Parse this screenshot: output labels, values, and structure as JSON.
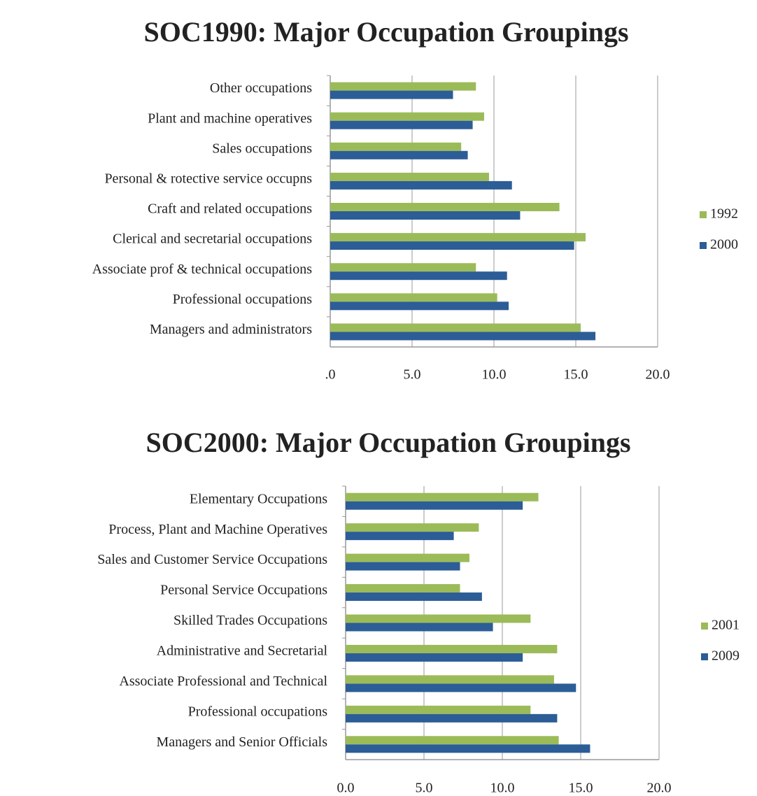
{
  "chart_data": [
    {
      "type": "bar",
      "orientation": "horizontal",
      "title": "SOC1990: Major Occupation Groupings",
      "categories": [
        "Other occupations",
        "Plant and machine operatives",
        "Sales occupations",
        "Personal & rotective service occupns",
        "Craft and related occupations",
        "Clerical and secretarial occupations",
        "Associate prof & technical occupations",
        "Professional occupations",
        "Managers and administrators"
      ],
      "series": [
        {
          "name": "1992",
          "color": "#9bbb59",
          "values": [
            8.9,
            9.4,
            8.0,
            9.7,
            14.0,
            15.6,
            8.9,
            10.2,
            15.3
          ]
        },
        {
          "name": "2000",
          "color": "#2c5d96",
          "values": [
            7.5,
            8.7,
            8.4,
            11.1,
            11.6,
            14.9,
            10.8,
            10.9,
            16.2
          ]
        }
      ],
      "xlim": [
        0,
        20
      ],
      "xticks": [
        {
          "value": 0,
          "label": ".0"
        },
        {
          "value": 5,
          "label": "5.0"
        },
        {
          "value": 10,
          "label": "10.0"
        },
        {
          "value": 15,
          "label": "15.0"
        },
        {
          "value": 20,
          "label": "20.0"
        }
      ],
      "grid": true,
      "legend": "right"
    },
    {
      "type": "bar",
      "orientation": "horizontal",
      "title": "SOC2000: Major Occupation Groupings",
      "categories": [
        "Elementary Occupations",
        "Process, Plant and Machine Operatives",
        "Sales and Customer Service Occupations",
        "Personal Service Occupations",
        "Skilled Trades Occupations",
        "Administrative and Secretarial",
        "Associate Professional and Technical",
        "Professional occupations",
        "Managers and Senior Officials"
      ],
      "series": [
        {
          "name": "2001",
          "color": "#9bbb59",
          "values": [
            12.3,
            8.5,
            7.9,
            7.3,
            11.8,
            13.5,
            13.3,
            11.8,
            13.6
          ]
        },
        {
          "name": "2009",
          "color": "#2c5d96",
          "values": [
            11.3,
            6.9,
            7.3,
            8.7,
            9.4,
            11.3,
            14.7,
            13.5,
            15.6
          ]
        }
      ],
      "xlim": [
        0,
        20
      ],
      "xticks": [
        {
          "value": 0,
          "label": "0.0"
        },
        {
          "value": 5,
          "label": "5.0"
        },
        {
          "value": 10,
          "label": "10.0"
        },
        {
          "value": 15,
          "label": "15.0"
        },
        {
          "value": 20,
          "label": "20.0"
        }
      ],
      "grid": true,
      "legend": "right"
    }
  ]
}
